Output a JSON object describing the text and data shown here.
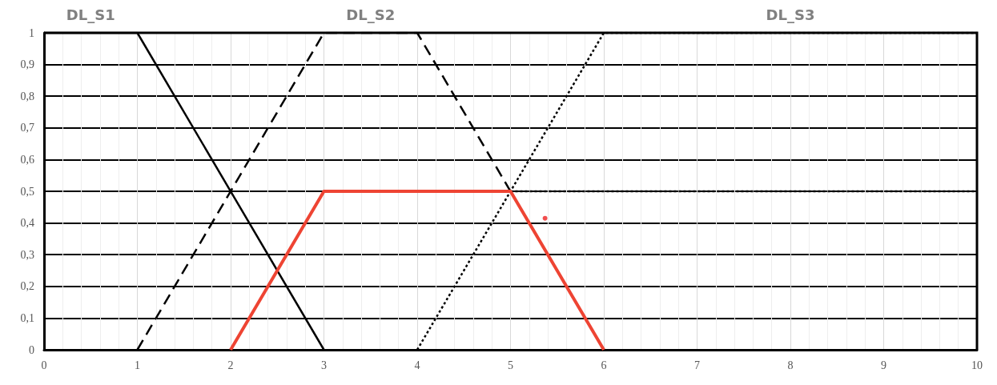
{
  "chart_data": {
    "type": "line",
    "marker": "none",
    "grid": true,
    "legend": false,
    "xlim": [
      0,
      10
    ],
    "xticks": [
      0,
      1,
      2,
      3,
      4,
      5,
      6,
      7,
      8,
      9,
      10
    ],
    "ylim": [
      0,
      1
    ],
    "yticks": [
      0,
      {
        "value": 0.1,
        "label": "0,1"
      },
      {
        "value": 0.2,
        "label": "0,2"
      },
      {
        "value": 0.3,
        "label": "0,3"
      },
      {
        "value": 0.4,
        "label": "0,4"
      },
      {
        "value": 0.5,
        "label": "0,5"
      },
      {
        "value": 0.6,
        "label": "0,6"
      },
      {
        "value": 0.7,
        "label": "0,7"
      },
      {
        "value": 0.8,
        "label": "0,8"
      },
      {
        "value": 0.9,
        "label": "0,9"
      },
      1
    ],
    "series": [
      {
        "name": "DL_S1",
        "color": "#000000",
        "line_style": "solid",
        "x": [
          0,
          1,
          3
        ],
        "values": [
          1,
          1,
          0
        ]
      },
      {
        "name": "DL_S2",
        "color": "#000000",
        "line_style": "dashed",
        "x": [
          1,
          3,
          4,
          6
        ],
        "values": [
          0,
          1,
          1,
          0
        ]
      },
      {
        "name": "DL_S3",
        "color": "#000000",
        "line_style": "dotted",
        "x": [
          4,
          6,
          10
        ],
        "values": [
          0,
          1,
          1
        ]
      },
      {
        "color": "#000000",
        "line_style": "dotted",
        "x": [
          5,
          10
        ],
        "values": [
          0.5,
          0.5
        ]
      },
      {
        "color": "#ee4433",
        "line_style": "solid",
        "x": [
          2,
          3,
          5,
          6
        ],
        "values": [
          0,
          0.5,
          0.5,
          0
        ]
      },
      {
        "type": "scatter",
        "marker": "circle",
        "color": "#ee2222",
        "x": [
          5.37
        ],
        "values": [
          0.415
        ]
      }
    ]
  }
}
